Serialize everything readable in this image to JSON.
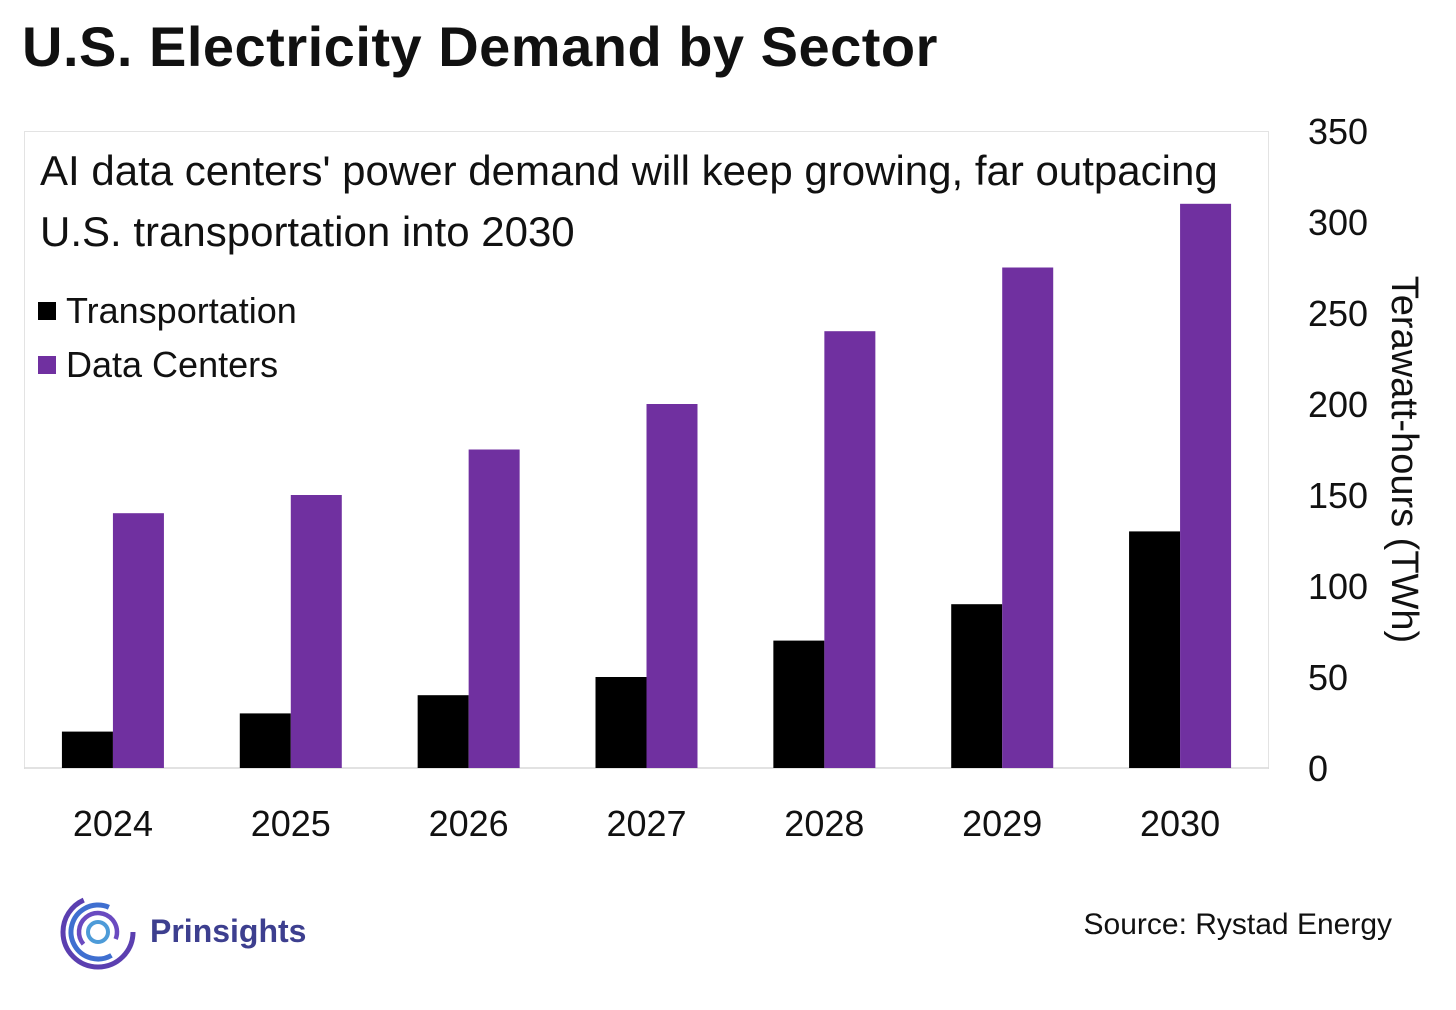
{
  "title": "U.S. Electricity Demand by Sector",
  "chart_data": {
    "type": "bar",
    "subtitle": "AI data centers' power demand will keep growing, far outpacing U.S. transportation into 2030",
    "categories": [
      "2024",
      "2025",
      "2026",
      "2027",
      "2028",
      "2029",
      "2030"
    ],
    "series": [
      {
        "name": "Transportation",
        "color": "#000000",
        "values": [
          20,
          30,
          40,
          50,
          70,
          90,
          130
        ]
      },
      {
        "name": "Data Centers",
        "color": "#7030a0",
        "values": [
          140,
          150,
          175,
          200,
          240,
          275,
          310
        ]
      }
    ],
    "ylabel": "Terawatt-hours (TWh)",
    "ylim": [
      0,
      350
    ],
    "yticks": [
      0,
      50,
      100,
      150,
      200,
      250,
      300,
      350
    ],
    "y_axis_side": "right",
    "legend_position": "top-left",
    "grid": false
  },
  "logo": {
    "name": "Prinsights",
    "icon": "prinsights-swirl-icon",
    "color": "#3d3f8f"
  },
  "source": "Source: Rystad Energy"
}
